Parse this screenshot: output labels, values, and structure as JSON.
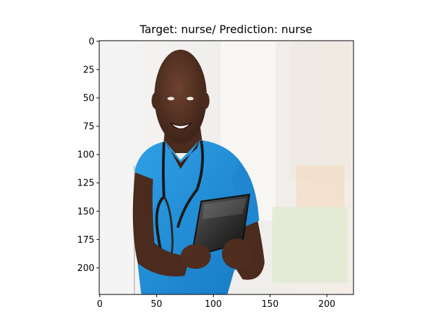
{
  "figure": {
    "title": "Target: nurse/ Prediction: nurse"
  },
  "image": {
    "subject": "smiling nurse in blue scrubs with stethoscope holding a tablet",
    "colors": {
      "scrubs": "#1e8fd8",
      "skin": "#5a3424",
      "background": "#f2eeea"
    }
  },
  "x_axis": {
    "ticks": [
      0,
      50,
      100,
      150,
      200
    ],
    "range": [
      -0.5,
      223.5
    ]
  },
  "y_axis": {
    "ticks": [
      0,
      25,
      50,
      75,
      100,
      125,
      150,
      175,
      200
    ],
    "range": [
      -0.5,
      223.5
    ]
  }
}
